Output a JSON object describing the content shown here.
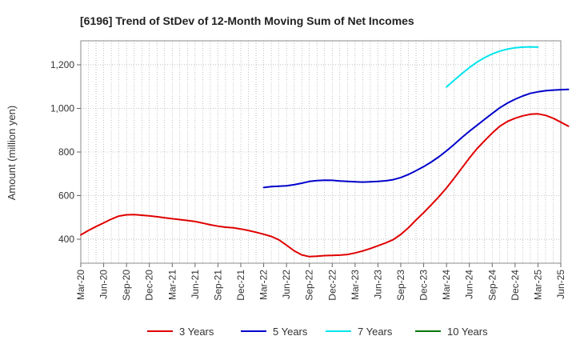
{
  "chart_data": {
    "type": "line",
    "title": "[6196]  Trend of StDev of 12-Month Moving Sum of Net Incomes",
    "ylabel": "Amount (million yen)",
    "xlabel": "",
    "ylim": [
      290,
      1310
    ],
    "yticks": [
      400,
      600,
      800,
      1000,
      1200
    ],
    "ytick_labels": [
      "400",
      "600",
      "800",
      "1,000",
      "1,200"
    ],
    "x_tick_labels": [
      "Mar-20",
      "Jun-20",
      "Sep-20",
      "Dec-20",
      "Mar-21",
      "Jun-21",
      "Sep-21",
      "Dec-21",
      "Mar-22",
      "Jun-22",
      "Sep-22",
      "Dec-22",
      "Mar-23",
      "Jun-23",
      "Sep-23",
      "Dec-23",
      "Mar-24",
      "Jun-24",
      "Sep-24",
      "Dec-24",
      "Mar-25",
      "Jun-25"
    ],
    "grid": true,
    "legend_position": "bottom",
    "series": [
      {
        "name": "3 Years",
        "color": "#e00000",
        "start": "Mar-20",
        "values": [
          420,
          440,
          458,
          475,
          492,
          506,
          512,
          513,
          510,
          507,
          503,
          498,
          494,
          490,
          486,
          481,
          474,
          466,
          460,
          455,
          452,
          447,
          440,
          432,
          423,
          413,
          397,
          373,
          347,
          328,
          320,
          322,
          325,
          326,
          327,
          330,
          337,
          346,
          357,
          370,
          383,
          398,
          422,
          452,
          488,
          522,
          558,
          595,
          635,
          680,
          726,
          772,
          815,
          852,
          887,
          918,
          940,
          955,
          966,
          973,
          975,
          968,
          955,
          937,
          918
        ]
      },
      {
        "name": "5 Years",
        "color": "#0000cc",
        "start": "Mar-22",
        "values": [
          637,
          641,
          643,
          645,
          650,
          657,
          665,
          669,
          671,
          670,
          667,
          665,
          663,
          662,
          663,
          665,
          668,
          673,
          683,
          697,
          714,
          733,
          754,
          778,
          805,
          835,
          866,
          895,
          922,
          950,
          977,
          1003,
          1024,
          1042,
          1057,
          1069,
          1076,
          1081,
          1084,
          1086,
          1087
        ]
      },
      {
        "name": "7 Years",
        "color": "#00e5ee",
        "start": "Mar-24",
        "values": [
          1098,
          1129,
          1159,
          1187,
          1212,
          1233,
          1250,
          1263,
          1272,
          1278,
          1281,
          1282,
          1281
        ]
      },
      {
        "name": "10 Years",
        "color": "#007700",
        "start": "",
        "values": []
      }
    ]
  }
}
